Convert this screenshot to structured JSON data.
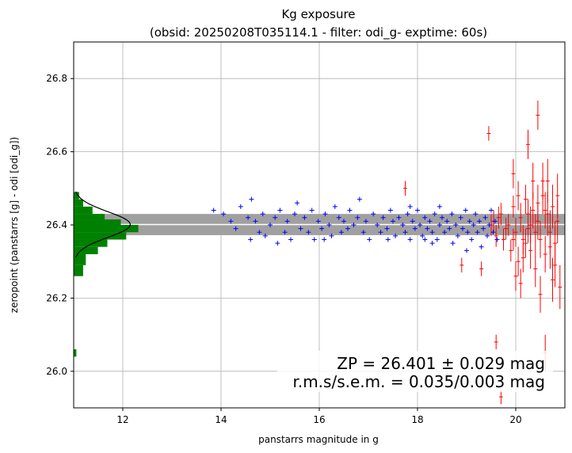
{
  "chart_data": {
    "type": "scatter",
    "title_line1": "Kg exposure",
    "title_line2": "(obsid: 20250208T035114.1 - filter: odi_g- exptime: 60s)",
    "xlabel": "panstarrs magnitude in g",
    "ylabel": "zeropoint (panstarrs [g] - odi [odi_g])",
    "xlim": [
      11.0,
      21.0
    ],
    "ylim": [
      25.9,
      26.9
    ],
    "xticks": [
      12,
      14,
      16,
      18,
      20
    ],
    "yticks": [
      26.0,
      26.2,
      26.4,
      26.6,
      26.8
    ],
    "grid": true,
    "zp": 26.401,
    "band": [
      26.372,
      26.43
    ],
    "annotation_line1": "ZP = 26.401 ± 0.029 mag",
    "annotation_line2": "r.m.s/s.e.m. = 0.035/0.003 mag",
    "colors": {
      "used": "#0000ff",
      "rejected": "#ff0000",
      "hist": "#008000",
      "band": "#a0a0a0",
      "zp_line": "#ffffff"
    },
    "histogram": {
      "bins": [
        {
          "y0": 26.26,
          "y1": 26.29,
          "count": 0.7
        },
        {
          "y0": 26.29,
          "y1": 26.32,
          "count": 0.9
        },
        {
          "y0": 26.32,
          "y1": 26.34,
          "count": 1.8
        },
        {
          "y0": 26.34,
          "y1": 26.36,
          "count": 2.5
        },
        {
          "y0": 26.36,
          "y1": 26.38,
          "count": 3.9
        },
        {
          "y0": 26.38,
          "y1": 26.4,
          "count": 4.8
        },
        {
          "y0": 26.4,
          "y1": 26.415,
          "count": 3.5
        },
        {
          "y0": 26.415,
          "y1": 26.43,
          "count": 2.3
        },
        {
          "y0": 26.43,
          "y1": 26.45,
          "count": 1.4
        },
        {
          "y0": 26.45,
          "y1": 26.47,
          "count": 0.7
        },
        {
          "y0": 26.47,
          "y1": 26.49,
          "count": 0.4
        },
        {
          "y0": 26.04,
          "y1": 26.06,
          "count": 0.2
        }
      ],
      "gauss_mean": 26.401,
      "gauss_sigma": 0.035,
      "gauss_peak": 4.2
    },
    "series": [
      {
        "points": [
          [
            13.85,
            26.44
          ],
          [
            14.05,
            26.43
          ],
          [
            14.2,
            26.41
          ],
          [
            14.3,
            26.39
          ],
          [
            14.4,
            26.45
          ],
          [
            14.55,
            26.42
          ],
          [
            14.62,
            26.47
          ],
          [
            14.7,
            26.41
          ],
          [
            14.78,
            26.38
          ],
          [
            14.85,
            26.43
          ],
          [
            14.9,
            26.37
          ],
          [
            15.0,
            26.4
          ],
          [
            15.1,
            26.42
          ],
          [
            15.2,
            26.44
          ],
          [
            15.3,
            26.38
          ],
          [
            15.35,
            26.41
          ],
          [
            15.42,
            26.36
          ],
          [
            15.5,
            26.43
          ],
          [
            15.55,
            26.46
          ],
          [
            15.62,
            26.39
          ],
          [
            15.7,
            26.42
          ],
          [
            15.78,
            26.38
          ],
          [
            15.85,
            26.44
          ],
          [
            15.9,
            26.36
          ],
          [
            15.98,
            26.41
          ],
          [
            16.05,
            26.39
          ],
          [
            16.12,
            26.43
          ],
          [
            16.2,
            26.4
          ],
          [
            16.25,
            26.37
          ],
          [
            16.32,
            26.45
          ],
          [
            16.4,
            26.42
          ],
          [
            16.45,
            26.38
          ],
          [
            16.5,
            26.41
          ],
          [
            16.58,
            26.39
          ],
          [
            16.62,
            26.44
          ],
          [
            16.7,
            26.4
          ],
          [
            16.78,
            26.42
          ],
          [
            16.82,
            26.47
          ],
          [
            16.9,
            26.38
          ],
          [
            16.95,
            26.41
          ],
          [
            17.02,
            26.36
          ],
          [
            17.1,
            26.43
          ],
          [
            17.18,
            26.4
          ],
          [
            17.25,
            26.38
          ],
          [
            17.3,
            26.42
          ],
          [
            17.38,
            26.39
          ],
          [
            17.45,
            26.44
          ],
          [
            17.5,
            26.41
          ],
          [
            17.55,
            26.37
          ],
          [
            17.62,
            26.42
          ],
          [
            17.7,
            26.4
          ],
          [
            17.75,
            26.38
          ],
          [
            17.8,
            26.43
          ],
          [
            17.85,
            26.36
          ],
          [
            17.9,
            26.41
          ],
          [
            17.95,
            26.39
          ],
          [
            18.0,
            26.44
          ],
          [
            18.05,
            26.4
          ],
          [
            18.1,
            26.37
          ],
          [
            18.15,
            26.42
          ],
          [
            18.2,
            26.39
          ],
          [
            18.25,
            26.41
          ],
          [
            18.3,
            26.38
          ],
          [
            18.35,
            26.43
          ],
          [
            18.4,
            26.36
          ],
          [
            18.45,
            26.4
          ],
          [
            18.5,
            26.42
          ],
          [
            18.55,
            26.38
          ],
          [
            18.6,
            26.41
          ],
          [
            18.65,
            26.39
          ],
          [
            18.7,
            26.43
          ],
          [
            18.72,
            26.35
          ],
          [
            18.78,
            26.4
          ],
          [
            18.82,
            26.37
          ],
          [
            18.88,
            26.42
          ],
          [
            18.92,
            26.39
          ],
          [
            18.98,
            26.44
          ],
          [
            19.02,
            26.38
          ],
          [
            19.06,
            26.41
          ],
          [
            19.1,
            26.36
          ],
          [
            19.14,
            26.4
          ],
          [
            19.18,
            26.43
          ],
          [
            19.22,
            26.38
          ],
          [
            19.26,
            26.41
          ],
          [
            19.3,
            26.34
          ],
          [
            19.34,
            26.39
          ],
          [
            19.38,
            26.42
          ],
          [
            19.42,
            26.37
          ],
          [
            19.46,
            26.4
          ],
          [
            19.5,
            26.44
          ],
          [
            19.54,
            26.38
          ],
          [
            19.58,
            26.41
          ],
          [
            19.62,
            26.36
          ],
          [
            18.3,
            26.35
          ],
          [
            17.4,
            26.36
          ],
          [
            16.1,
            26.36
          ],
          [
            15.15,
            26.35
          ],
          [
            14.6,
            26.36
          ],
          [
            17.85,
            26.45
          ],
          [
            18.45,
            26.45
          ],
          [
            19.0,
            26.33
          ],
          [
            18.15,
            26.36
          ]
        ]
      },
      {
        "points": [
          [
            17.75,
            26.5,
            0.02
          ],
          [
            19.45,
            26.65,
            0.02
          ],
          [
            19.6,
            26.08,
            0.02
          ],
          [
            19.7,
            25.93,
            0.02
          ],
          [
            19.95,
            26.54,
            0.04
          ],
          [
            20.25,
            26.62,
            0.04
          ],
          [
            20.45,
            26.7,
            0.04
          ],
          [
            20.6,
            26.05,
            0.05
          ],
          [
            20.9,
            26.23,
            0.06
          ],
          [
            18.9,
            26.29,
            0.02
          ],
          [
            19.3,
            26.28,
            0.02
          ],
          [
            19.85,
            26.4,
            0.03
          ],
          [
            19.65,
            26.42,
            0.03
          ],
          [
            19.75,
            26.36,
            0.03
          ],
          [
            19.9,
            26.33,
            0.03
          ],
          [
            19.95,
            26.45,
            0.03
          ],
          [
            20.0,
            26.38,
            0.04
          ],
          [
            20.05,
            26.3,
            0.04
          ],
          [
            20.1,
            26.42,
            0.04
          ],
          [
            20.15,
            26.36,
            0.04
          ],
          [
            20.2,
            26.47,
            0.04
          ],
          [
            20.25,
            26.39,
            0.04
          ],
          [
            20.3,
            26.33,
            0.05
          ],
          [
            20.35,
            26.44,
            0.05
          ],
          [
            20.4,
            26.28,
            0.05
          ],
          [
            20.45,
            26.41,
            0.05
          ],
          [
            20.5,
            26.36,
            0.05
          ],
          [
            20.55,
            26.48,
            0.05
          ],
          [
            20.6,
            26.32,
            0.05
          ],
          [
            20.65,
            26.43,
            0.06
          ],
          [
            20.7,
            26.38,
            0.06
          ],
          [
            20.75,
            26.45,
            0.06
          ],
          [
            20.8,
            26.35,
            0.06
          ],
          [
            20.85,
            26.41,
            0.06
          ],
          [
            19.6,
            26.37,
            0.03
          ],
          [
            19.7,
            26.43,
            0.03
          ],
          [
            19.8,
            26.39,
            0.03
          ],
          [
            20.0,
            26.26,
            0.04
          ],
          [
            20.1,
            26.24,
            0.04
          ],
          [
            20.2,
            26.35,
            0.04
          ],
          [
            20.3,
            26.4,
            0.05
          ],
          [
            20.4,
            26.38,
            0.05
          ],
          [
            20.5,
            26.21,
            0.05
          ],
          [
            20.6,
            26.44,
            0.05
          ],
          [
            20.7,
            26.34,
            0.06
          ],
          [
            20.8,
            26.29,
            0.06
          ],
          [
            20.55,
            26.52,
            0.05
          ],
          [
            20.35,
            26.52,
            0.05
          ],
          [
            20.65,
            26.52,
            0.06
          ],
          [
            19.55,
            26.41,
            0.03
          ],
          [
            19.5,
            26.4,
            0.03
          ],
          [
            20.15,
            26.31,
            0.04
          ],
          [
            20.45,
            26.46,
            0.05
          ],
          [
            20.75,
            26.25,
            0.06
          ],
          [
            19.95,
            26.36,
            0.03
          ],
          [
            20.25,
            26.43,
            0.04
          ],
          [
            20.05,
            26.48,
            0.04
          ],
          [
            20.85,
            26.48,
            0.06
          ]
        ]
      }
    ]
  }
}
